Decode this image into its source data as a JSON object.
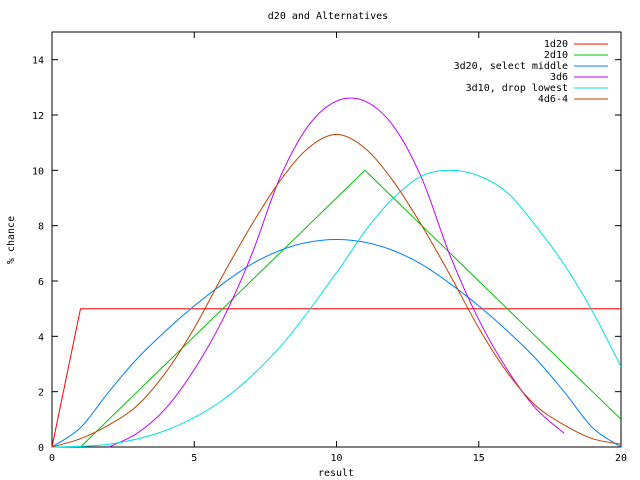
{
  "chart_data": {
    "type": "line",
    "title": "d20 and Alternatives",
    "xlabel": "result",
    "ylabel": "% chance",
    "xlim": [
      0,
      20
    ],
    "ylim": [
      0,
      15
    ],
    "x_ticks": [
      0,
      5,
      10,
      15,
      20
    ],
    "y_ticks": [
      0,
      2,
      4,
      6,
      8,
      10,
      12,
      14
    ],
    "grid": false,
    "legend_position": "top-right",
    "series": [
      {
        "name": "1d20",
        "color": "#ff0000",
        "x": [
          0,
          1,
          20
        ],
        "y": [
          0,
          5,
          5
        ]
      },
      {
        "name": "2d10",
        "color": "#00c000",
        "x": [
          1,
          2,
          3,
          4,
          5,
          6,
          7,
          8,
          9,
          10,
          11,
          12,
          13,
          14,
          15,
          16,
          17,
          18,
          19,
          20
        ],
        "y": [
          0,
          1,
          2,
          3,
          4,
          5,
          6,
          7,
          8,
          9,
          10,
          9,
          8,
          7,
          6,
          5,
          4,
          3,
          2,
          1
        ]
      },
      {
        "name": "3d20, select middle",
        "color": "#0080ff",
        "x": [
          0,
          1,
          2,
          3,
          4,
          5,
          6,
          7,
          8,
          9,
          10,
          11,
          12,
          13,
          14,
          15,
          16,
          17,
          18,
          19,
          20
        ],
        "y": [
          0,
          0.7,
          2.0,
          3.2,
          4.2,
          5.1,
          5.9,
          6.6,
          7.1,
          7.4,
          7.5,
          7.4,
          7.1,
          6.6,
          5.9,
          5.1,
          4.2,
          3.2,
          2.0,
          0.7,
          0
        ]
      },
      {
        "name": "3d6",
        "color": "#c000ff",
        "x": [
          2,
          3,
          4,
          5,
          6,
          7,
          8,
          9,
          10,
          11,
          12,
          13,
          14,
          15,
          16,
          17,
          18
        ],
        "y": [
          0,
          0.5,
          1.4,
          2.8,
          4.6,
          6.9,
          9.7,
          11.6,
          12.5,
          12.5,
          11.6,
          9.7,
          6.9,
          4.6,
          2.8,
          1.4,
          0.5
        ]
      },
      {
        "name": "3d10, drop lowest",
        "color": "#00e0e0",
        "x": [
          0,
          2,
          4,
          6,
          8,
          10,
          11,
          12,
          13,
          14,
          15,
          16,
          17,
          18,
          19,
          20
        ],
        "y": [
          0,
          0.1,
          0.6,
          1.7,
          3.6,
          6.3,
          7.8,
          9.0,
          9.8,
          10.0,
          9.8,
          9.2,
          8.0,
          6.6,
          4.9,
          2.9
        ]
      },
      {
        "name": "4d6-4",
        "color": "#c04000",
        "x": [
          0,
          1,
          2,
          3,
          4,
          5,
          6,
          7,
          8,
          9,
          10,
          11,
          12,
          13,
          14,
          15,
          16,
          17,
          18,
          19,
          20
        ],
        "y": [
          0,
          0.3,
          0.8,
          1.5,
          2.7,
          4.3,
          6.2,
          8.0,
          9.6,
          10.8,
          11.3,
          10.8,
          9.6,
          8.0,
          6.2,
          4.3,
          2.7,
          1.5,
          0.8,
          0.3,
          0.1
        ]
      }
    ]
  }
}
